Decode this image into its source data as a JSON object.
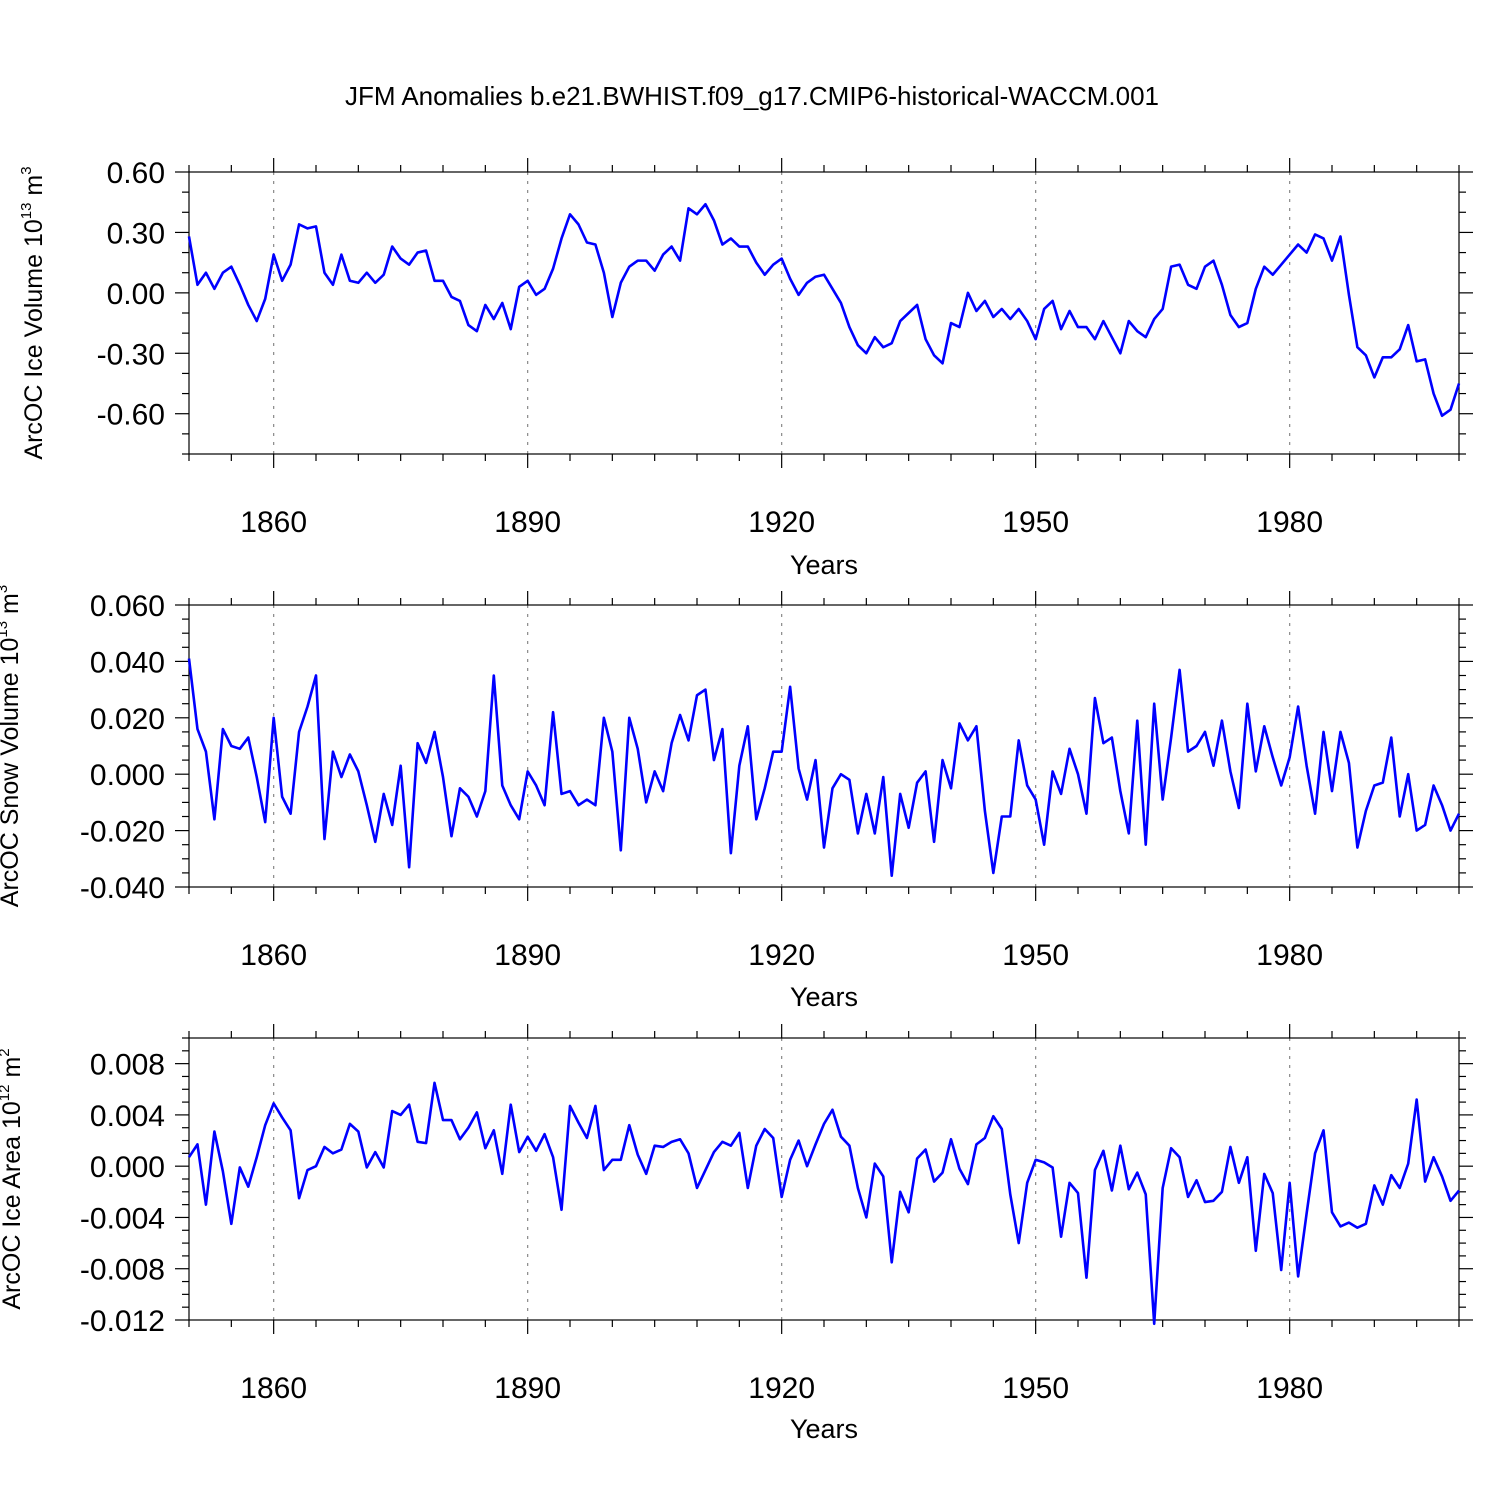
{
  "title": "JFM Anomalies b.e21.BWHIST.f09_g17.CMIP6-historical-WACCM.001",
  "chart_data": [
    {
      "type": "line",
      "ylabel": "ArcOC Ice Volume 10",
      "ylabel_exp": "13",
      "ylabel_unit": "m",
      "ylabel_unit_exp": "3",
      "xlabel": "Years",
      "xlim": [
        1850,
        2000
      ],
      "ylim": [
        -0.8,
        0.6
      ],
      "xticks": [
        1860,
        1890,
        1920,
        1950,
        1980
      ],
      "xtick_labels": [
        "1860",
        "1890",
        "1920",
        "1950",
        "1980"
      ],
      "yticks": [
        0.6,
        0.3,
        0.0,
        -0.3,
        -0.6
      ],
      "ytick_labels": [
        "0.60",
        "0.30",
        "0.00",
        "-0.30",
        "-0.60"
      ],
      "yminor": 0.1,
      "grid": "dashed vertical at major x ticks",
      "x_start": 1850,
      "x_step": 1,
      "values": [
        0.28,
        0.04,
        0.1,
        0.02,
        0.1,
        0.13,
        0.04,
        -0.06,
        -0.14,
        -0.03,
        0.19,
        0.06,
        0.14,
        0.34,
        0.32,
        0.33,
        0.1,
        0.04,
        0.19,
        0.06,
        0.05,
        0.1,
        0.05,
        0.09,
        0.23,
        0.17,
        0.14,
        0.2,
        0.21,
        0.06,
        0.06,
        -0.02,
        -0.04,
        -0.16,
        -0.19,
        -0.06,
        -0.13,
        -0.05,
        -0.18,
        0.03,
        0.06,
        -0.01,
        0.02,
        0.12,
        0.27,
        0.39,
        0.34,
        0.25,
        0.24,
        0.1,
        -0.12,
        0.05,
        0.13,
        0.16,
        0.16,
        0.11,
        0.19,
        0.23,
        0.16,
        0.42,
        0.39,
        0.44,
        0.36,
        0.24,
        0.27,
        0.23,
        0.23,
        0.15,
        0.09,
        0.14,
        0.17,
        0.07,
        -0.01,
        0.05,
        0.08,
        0.09,
        0.02,
        -0.05,
        -0.17,
        -0.26,
        -0.3,
        -0.22,
        -0.27,
        -0.25,
        -0.14,
        -0.1,
        -0.06,
        -0.23,
        -0.31,
        -0.35,
        -0.15,
        -0.17,
        0.0,
        -0.09,
        -0.04,
        -0.12,
        -0.08,
        -0.13,
        -0.08,
        -0.14,
        -0.23,
        -0.08,
        -0.04,
        -0.18,
        -0.09,
        -0.17,
        -0.17,
        -0.23,
        -0.14,
        -0.22,
        -0.3,
        -0.14,
        -0.19,
        -0.22,
        -0.13,
        -0.08,
        0.13,
        0.14,
        0.04,
        0.02,
        0.13,
        0.16,
        0.04,
        -0.11,
        -0.17,
        -0.15,
        0.02,
        0.13,
        0.09,
        0.14,
        0.19,
        0.24,
        0.2,
        0.29,
        0.27,
        0.16,
        0.28,
        -0.01,
        -0.27,
        -0.31,
        -0.42,
        -0.32,
        -0.32,
        -0.28,
        -0.16,
        -0.34,
        -0.33,
        -0.5,
        -0.61,
        -0.58,
        -0.45
      ]
    },
    {
      "type": "line",
      "ylabel": "ArcOC Snow Volume 10",
      "ylabel_exp": "13",
      "ylabel_unit": "m",
      "ylabel_unit_exp": "3",
      "xlabel": "Years",
      "xlim": [
        1850,
        2000
      ],
      "ylim": [
        -0.04,
        0.06
      ],
      "xticks": [
        1860,
        1890,
        1920,
        1950,
        1980
      ],
      "xtick_labels": [
        "1860",
        "1890",
        "1920",
        "1950",
        "1980"
      ],
      "yticks": [
        0.06,
        0.04,
        0.02,
        0.0,
        -0.02,
        -0.04
      ],
      "ytick_labels": [
        "0.060",
        "0.040",
        "0.020",
        "0.000",
        "-0.020",
        "-0.040"
      ],
      "yminor": 0.005,
      "grid": "dashed vertical at major x ticks",
      "x_start": 1850,
      "x_step": 1,
      "values": [
        0.041,
        0.016,
        0.008,
        -0.016,
        0.016,
        0.01,
        0.009,
        0.013,
        -0.001,
        -0.017,
        0.02,
        -0.008,
        -0.014,
        0.015,
        0.024,
        0.035,
        -0.023,
        0.008,
        -0.001,
        0.007,
        0.001,
        -0.011,
        -0.024,
        -0.007,
        -0.018,
        0.003,
        -0.033,
        0.011,
        0.004,
        0.015,
        -0.001,
        -0.022,
        -0.005,
        -0.008,
        -0.015,
        -0.006,
        0.035,
        -0.004,
        -0.011,
        -0.016,
        0.001,
        -0.004,
        -0.011,
        0.022,
        -0.007,
        -0.006,
        -0.011,
        -0.009,
        -0.011,
        0.02,
        0.008,
        -0.027,
        0.02,
        0.009,
        -0.01,
        0.001,
        -0.006,
        0.011,
        0.021,
        0.012,
        0.028,
        0.03,
        0.005,
        0.016,
        -0.028,
        0.003,
        0.017,
        -0.016,
        -0.005,
        0.008,
        0.008,
        0.031,
        0.002,
        -0.009,
        0.005,
        -0.026,
        -0.005,
        0.0,
        -0.002,
        -0.021,
        -0.007,
        -0.021,
        -0.001,
        -0.036,
        -0.007,
        -0.019,
        -0.003,
        0.001,
        -0.024,
        0.005,
        -0.005,
        0.018,
        0.012,
        0.017,
        -0.013,
        -0.035,
        -0.015,
        -0.015,
        0.012,
        -0.004,
        -0.009,
        -0.025,
        0.001,
        -0.007,
        0.009,
        0.0,
        -0.014,
        0.027,
        0.011,
        0.013,
        -0.006,
        -0.021,
        0.019,
        -0.025,
        0.025,
        -0.009,
        0.013,
        0.037,
        0.008,
        0.01,
        0.015,
        0.003,
        0.019,
        0.001,
        -0.012,
        0.025,
        0.001,
        0.017,
        0.006,
        -0.004,
        0.006,
        0.024,
        0.003,
        -0.014,
        0.015,
        -0.006,
        0.015,
        0.004,
        -0.026,
        -0.013,
        -0.004,
        -0.003,
        0.013,
        -0.015,
        0.0,
        -0.02,
        -0.018,
        -0.004,
        -0.011,
        -0.02,
        -0.014
      ]
    },
    {
      "type": "line",
      "ylabel": "ArcOC Ice Area 10",
      "ylabel_exp": "12",
      "ylabel_unit": "m",
      "ylabel_unit_exp": "2",
      "xlabel": "Years",
      "xlim": [
        1850,
        2000
      ],
      "ylim": [
        -0.012,
        0.01
      ],
      "xticks": [
        1860,
        1890,
        1920,
        1950,
        1980
      ],
      "xtick_labels": [
        "1860",
        "1890",
        "1920",
        "1950",
        "1980"
      ],
      "yticks": [
        0.008,
        0.004,
        0.0,
        -0.004,
        -0.008,
        -0.012
      ],
      "ytick_labels": [
        "0.008",
        "0.004",
        "0.000",
        "-0.004",
        "-0.008",
        "-0.012"
      ],
      "yminor": 0.001,
      "grid": "dashed vertical at major x ticks",
      "x_start": 1850,
      "x_step": 1,
      "values": [
        0.0007,
        0.0017,
        -0.003,
        0.0027,
        -0.0004,
        -0.0045,
        -0.0001,
        -0.0016,
        0.0007,
        0.0032,
        0.0049,
        0.0038,
        0.0028,
        -0.0025,
        -0.0003,
        0.0,
        0.0015,
        0.001,
        0.0013,
        0.0033,
        0.0027,
        -0.0001,
        0.0011,
        -0.0001,
        0.0043,
        0.004,
        0.0048,
        0.0019,
        0.0018,
        0.0065,
        0.0036,
        0.0036,
        0.0021,
        0.003,
        0.0042,
        0.0014,
        0.0028,
        -0.0006,
        0.0048,
        0.0011,
        0.0023,
        0.0012,
        0.0025,
        0.0007,
        -0.0034,
        0.0047,
        0.0034,
        0.0022,
        0.0047,
        -0.0003,
        0.0005,
        0.0005,
        0.0032,
        0.0009,
        -0.0006,
        0.0016,
        0.0015,
        0.0019,
        0.0021,
        0.001,
        -0.0017,
        -0.0003,
        0.0011,
        0.0019,
        0.0016,
        0.0026,
        -0.0017,
        0.0016,
        0.0029,
        0.0022,
        -0.0024,
        0.0005,
        0.002,
        0.0,
        0.0017,
        0.0033,
        0.0044,
        0.0023,
        0.0016,
        -0.0017,
        -0.004,
        0.0002,
        -0.0008,
        -0.0075,
        -0.002,
        -0.0036,
        0.0006,
        0.0013,
        -0.0012,
        -0.0005,
        0.0021,
        -0.0002,
        -0.0014,
        0.0017,
        0.0022,
        0.0039,
        0.0029,
        -0.0022,
        -0.006,
        -0.0013,
        0.0005,
        0.0003,
        -0.0001,
        -0.0055,
        -0.0013,
        -0.0021,
        -0.0087,
        -0.0003,
        0.0012,
        -0.0019,
        0.0016,
        -0.0018,
        -0.0005,
        -0.0022,
        -0.0123,
        -0.0017,
        0.0014,
        0.0007,
        -0.0024,
        -0.0011,
        -0.0028,
        -0.0027,
        -0.002,
        0.0015,
        -0.0013,
        0.0007,
        -0.0066,
        -0.0006,
        -0.0021,
        -0.0081,
        -0.0013,
        -0.0086,
        -0.0037,
        0.001,
        0.0028,
        -0.0036,
        -0.0047,
        -0.0044,
        -0.0048,
        -0.0045,
        -0.0015,
        -0.003,
        -0.0007,
        -0.0017,
        0.0002,
        0.0052,
        -0.0012,
        0.0007,
        -0.0008,
        -0.0027,
        -0.0019
      ]
    }
  ]
}
